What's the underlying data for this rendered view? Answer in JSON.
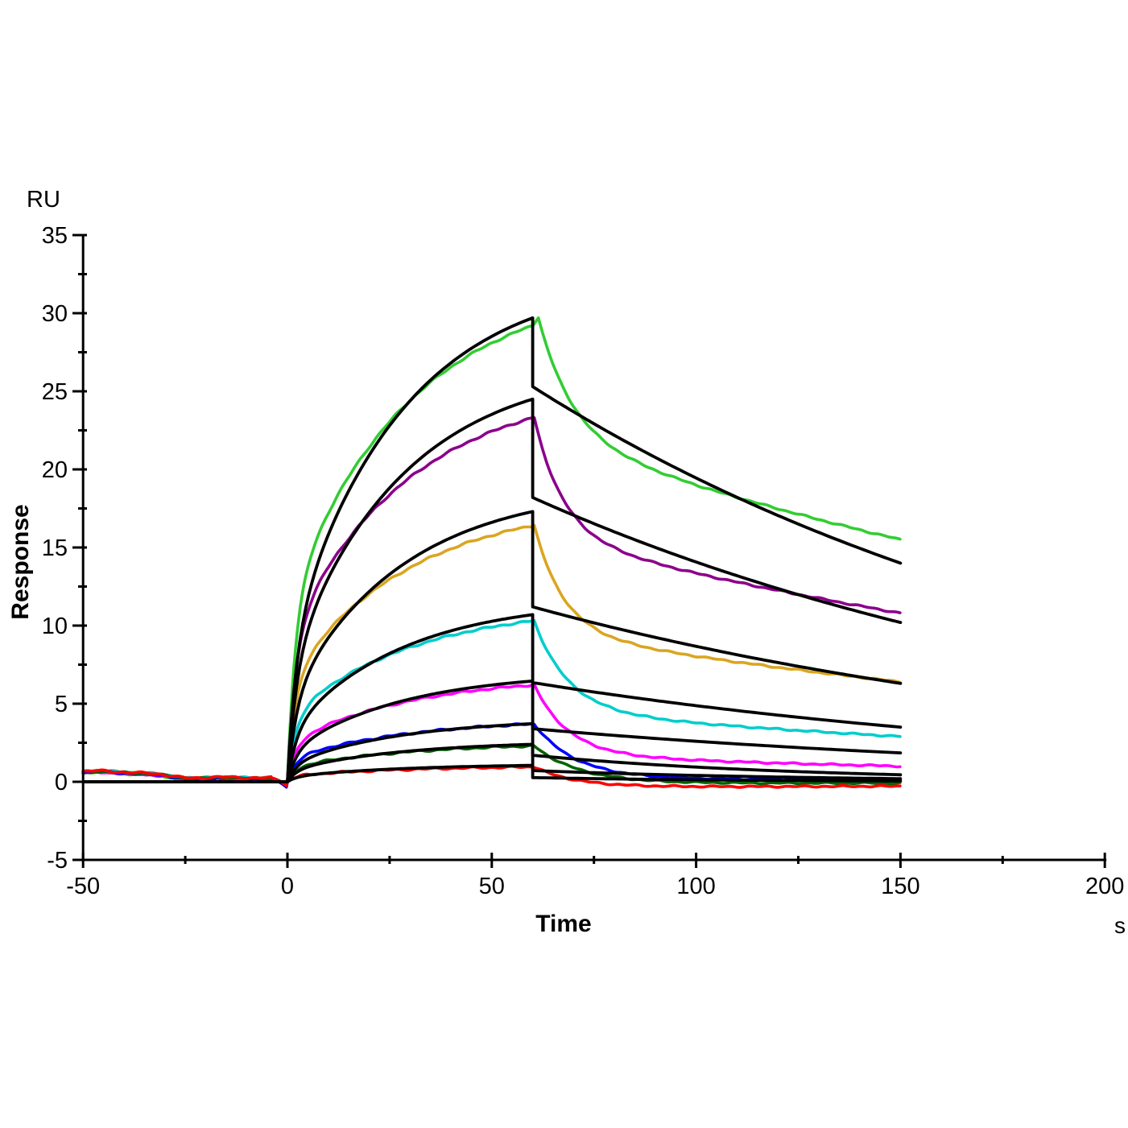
{
  "chart_data": {
    "type": "line",
    "title": "",
    "description": "Surface plasmon resonance sensorgram: eight concentration traces (colored, noisy) with black 1:1 kinetic fit overlays; injection from 0 to 60 s, dissociation followed to 150 s",
    "xlabel": "Time",
    "x_unit": "s",
    "ylabel": "Response",
    "y_unit": "RU",
    "xlim": [
      -50,
      200
    ],
    "ylim": [
      -5,
      35
    ],
    "x_ticks_major": [
      -50,
      0,
      50,
      100,
      150,
      200
    ],
    "x_ticks_minor": [
      -25,
      25,
      75,
      125,
      175
    ],
    "y_ticks_major": [
      -5,
      0,
      5,
      10,
      15,
      20,
      25,
      30,
      35
    ],
    "y_ticks_minor": [
      -2.5,
      2.5,
      7.5,
      12.5,
      17.5,
      22.5,
      27.5,
      32.5
    ],
    "grid": false,
    "legend": "none",
    "axis_color": "#000000",
    "fit_color": "#000000",
    "injection_start_s": 0,
    "injection_end_s": 60,
    "trace_end_s": 150,
    "baseline_ru_start": 0.6,
    "baseline_ru_preinjection": 0.2,
    "predip_ru": -0.3,
    "assoc_shape": {
      "data": {
        "a": 0.36,
        "kf": 0.5,
        "ks": 0.033
      },
      "fit": {
        "a": 0.27,
        "kf": 0.45,
        "ks": 0.036
      }
    },
    "series": [
      {
        "name": "trace-1-green",
        "color": "#32cd32",
        "peak_ru": 29.2,
        "data_max_ru": 29.7,
        "data_max_t_s": 61.4,
        "diss_end_ru": 15.5,
        "diss_k_fast": 0.12,
        "diss_k_slow": 0.004,
        "fit_peak_ru": 29.7,
        "fit_diss_start_ru": 25.3,
        "fit_diss_end_ru": 14.0
      },
      {
        "name": "trace-2-purple",
        "color": "#8b008b",
        "peak_ru": 23.3,
        "data_max_ru": 23.3,
        "data_max_t_s": 60.4,
        "diss_end_ru": 10.8,
        "diss_k_fast": 0.14,
        "diss_k_slow": 0.0042,
        "fit_peak_ru": 24.5,
        "fit_diss_start_ru": 18.2,
        "fit_diss_end_ru": 10.2
      },
      {
        "name": "trace-3-gold",
        "color": "#daa520",
        "peak_ru": 16.4,
        "data_max_ru": 16.4,
        "data_max_t_s": 60.4,
        "diss_end_ru": 6.4,
        "diss_k_fast": 0.14,
        "diss_k_slow": 0.0045,
        "fit_peak_ru": 17.3,
        "fit_diss_start_ru": 11.2,
        "fit_diss_end_ru": 6.3
      },
      {
        "name": "trace-4-cyan",
        "color": "#00cdcd",
        "peak_ru": 10.3,
        "data_max_ru": 10.3,
        "data_max_t_s": 60.4,
        "diss_end_ru": 2.9,
        "diss_k_fast": 0.12,
        "diss_k_slow": 0.005,
        "fit_peak_ru": 10.7,
        "fit_diss_start_ru": 6.35,
        "fit_diss_end_ru": 3.5
      },
      {
        "name": "trace-5-magenta",
        "color": "#ff00ff",
        "peak_ru": 6.2,
        "data_max_ru": 6.2,
        "data_max_t_s": 60.4,
        "diss_end_ru": 1.0,
        "diss_k_fast": 0.12,
        "diss_k_slow": 0.006,
        "fit_peak_ru": 6.45,
        "fit_diss_start_ru": 3.4,
        "fit_diss_end_ru": 1.85
      },
      {
        "name": "trace-6-blue",
        "color": "#0000ff",
        "peak_ru": 3.7,
        "data_max_ru": 3.7,
        "data_max_t_s": 60.4,
        "diss_end_ru": 0.12,
        "diss_k_fast": 0.1,
        "diss_k_slow": 0.006,
        "fit_peak_ru": 3.72,
        "fit_diss_start_ru": 1.7,
        "fit_diss_end_ru": 0.45
      },
      {
        "name": "trace-7-darkgreen",
        "color": "#006400",
        "peak_ru": 2.3,
        "data_max_ru": 2.3,
        "data_max_t_s": 60.4,
        "diss_end_ru": -0.08,
        "diss_k_fast": 0.09,
        "diss_k_slow": 0.004,
        "fit_peak_ru": 2.4,
        "fit_diss_start_ru": 0.72,
        "fit_diss_end_ru": 0.2
      },
      {
        "name": "trace-8-red",
        "color": "#ff0000",
        "peak_ru": 0.95,
        "data_max_ru": 0.95,
        "data_max_t_s": 60.4,
        "diss_end_ru": -0.28,
        "diss_k_fast": 0.1,
        "diss_k_slow": 0.003,
        "fit_peak_ru": 1.05,
        "fit_diss_start_ru": 0.27,
        "fit_diss_end_ru": 0.05
      }
    ]
  }
}
